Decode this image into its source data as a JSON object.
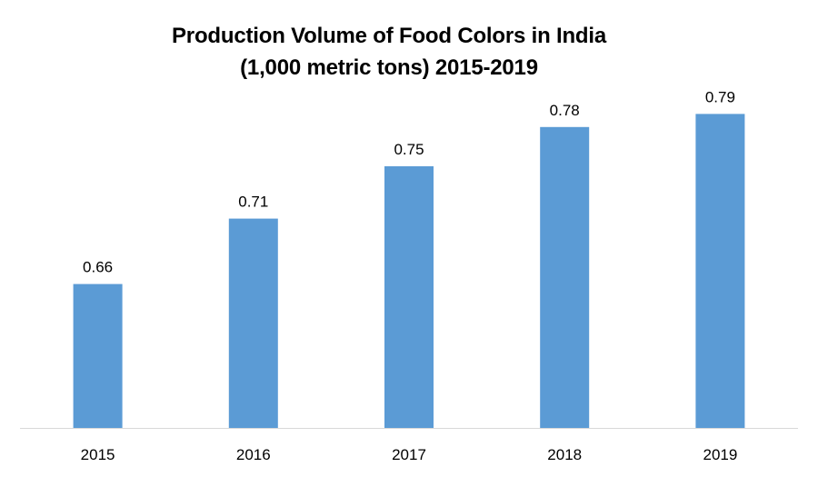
{
  "chart_data": {
    "type": "bar",
    "title_line1": "Production Volume of Food Colors in India",
    "title_line2": "(1,000 metric tons) 2015-2019",
    "categories": [
      "2015",
      "2016",
      "2017",
      "2018",
      "2019"
    ],
    "values": [
      0.66,
      0.71,
      0.75,
      0.78,
      0.79
    ],
    "data_labels": [
      "0.66",
      "0.71",
      "0.75",
      "0.78",
      "0.79"
    ],
    "xlabel": "",
    "ylabel": "",
    "ylim": [
      0.55,
      0.82
    ],
    "grid": false,
    "legend": "none",
    "bar_color": "#5b9bd5",
    "axis_color": "#d9d9d9"
  }
}
